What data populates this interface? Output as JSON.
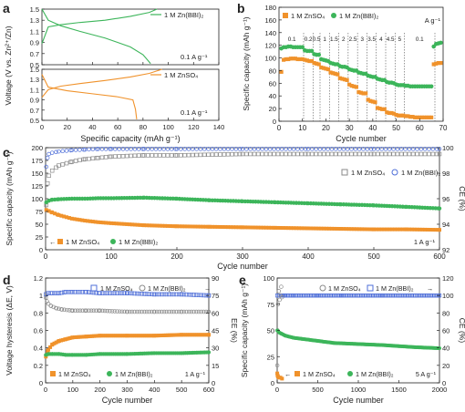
{
  "colors": {
    "orange": "#f0922b",
    "green": "#3cb55a",
    "grey": "#8a8a8a",
    "blue": "#4f6fd8",
    "axis": "#222222"
  },
  "chart_data": [
    {
      "id": "a",
      "type": "line",
      "panel_label": "a",
      "xlabel": "Specific capacity (mAh g⁻¹)",
      "ylabel": "Voltage (V vs. Zn²⁺/Zn)",
      "xlim": [
        0,
        140
      ],
      "xticks": [
        0,
        20,
        40,
        60,
        80,
        100,
        120,
        140
      ],
      "subplots": [
        {
          "legend": "1 M Zn(BBI)₂",
          "rate": "0.1 A g⁻¹",
          "ylim": [
            0.5,
            1.5
          ],
          "yticks": [
            0.5,
            0.7,
            0.9,
            1.1,
            1.3,
            1.5
          ],
          "series": [
            {
              "name": "charge",
              "x": [
                0,
                5,
                15,
                30,
                50,
                70,
                85,
                91
              ],
              "y": [
                0.88,
                1.18,
                1.22,
                1.26,
                1.3,
                1.37,
                1.44,
                1.5
              ]
            },
            {
              "name": "discharge",
              "x": [
                0,
                5,
                15,
                30,
                50,
                70,
                80,
                86
              ],
              "y": [
                1.5,
                1.3,
                1.2,
                1.1,
                0.98,
                0.82,
                0.68,
                0.52
              ]
            }
          ]
        },
        {
          "legend": "1 M ZnSO₄",
          "rate": "0.1 A g⁻¹",
          "ylim": [
            0.5,
            1.5
          ],
          "yticks": [
            0.5,
            0.7,
            0.9,
            1.1,
            1.3,
            1.5
          ],
          "series": [
            {
              "name": "charge",
              "x": [
                0,
                5,
                15,
                30,
                50,
                70,
                85,
                95
              ],
              "y": [
                0.95,
                1.1,
                1.17,
                1.22,
                1.28,
                1.35,
                1.42,
                1.5
              ]
            },
            {
              "name": "discharge",
              "x": [
                0,
                5,
                20,
                40,
                60,
                72,
                74,
                75
              ],
              "y": [
                1.4,
                1.15,
                1.08,
                1.02,
                0.96,
                0.9,
                0.72,
                0.52
              ]
            }
          ]
        }
      ]
    },
    {
      "id": "b",
      "type": "scatter",
      "panel_label": "b",
      "xlabel": "Cycle number",
      "ylabel": "Specific capacity (mAh g⁻¹)",
      "unit_label": "A g⁻¹",
      "xlim": [
        0,
        70
      ],
      "ylim": [
        0,
        180
      ],
      "xticks": [
        0,
        10,
        20,
        30,
        40,
        50,
        60,
        70
      ],
      "yticks": [
        0,
        20,
        40,
        60,
        80,
        100,
        120,
        140,
        160,
        180
      ],
      "rate_labels": [
        "0.1",
        "0.2",
        "0.5",
        "1",
        "1.5",
        "2",
        "2.5",
        "3",
        "3.5",
        "4",
        "4.5",
        "5",
        "0.1"
      ],
      "rate_boundaries": [
        10,
        14,
        17,
        21,
        25,
        29,
        33,
        37,
        41,
        45,
        49,
        53,
        66
      ],
      "series": [
        {
          "name": "1 M ZnSO₄",
          "x": [
            1,
            2,
            3,
            4,
            5,
            6,
            7,
            8,
            9,
            10,
            11,
            12,
            13,
            14,
            15,
            16,
            17,
            18,
            19,
            20,
            21,
            22,
            23,
            24,
            25,
            26,
            27,
            28,
            29,
            30,
            31,
            32,
            33,
            34,
            35,
            36,
            37,
            38,
            39,
            40,
            41,
            42,
            43,
            44,
            45,
            46,
            47,
            48,
            49,
            50,
            51,
            52,
            53,
            54,
            55,
            56,
            57,
            58,
            59,
            60,
            61,
            62,
            63,
            64,
            65,
            66,
            67,
            68,
            69
          ],
          "y": [
            78,
            97,
            98,
            98,
            99,
            99,
            99,
            98,
            98,
            98,
            97,
            96,
            95,
            95,
            92,
            91,
            90,
            85,
            84,
            83,
            82,
            77,
            76,
            75,
            74,
            68,
            67,
            66,
            65,
            58,
            56,
            55,
            54,
            46,
            45,
            44,
            44,
            34,
            32,
            31,
            30,
            21,
            20,
            19,
            19,
            14,
            13,
            13,
            12,
            10,
            9,
            9,
            9,
            8,
            8,
            7,
            7,
            6,
            6,
            6,
            6,
            6,
            6,
            6,
            6,
            90,
            91,
            92,
            92
          ]
        },
        {
          "name": "1 M Zn(BBI)₂",
          "x": [
            1,
            2,
            3,
            4,
            5,
            6,
            7,
            8,
            9,
            10,
            11,
            12,
            13,
            14,
            15,
            16,
            17,
            18,
            19,
            20,
            21,
            22,
            23,
            24,
            25,
            26,
            27,
            28,
            29,
            30,
            31,
            32,
            33,
            34,
            35,
            36,
            37,
            38,
            39,
            40,
            41,
            42,
            43,
            44,
            45,
            46,
            47,
            48,
            49,
            50,
            51,
            52,
            53,
            54,
            55,
            56,
            57,
            58,
            59,
            60,
            61,
            62,
            63,
            64,
            65,
            66,
            67,
            68,
            69
          ],
          "y": [
            115,
            117,
            117,
            118,
            118,
            117,
            117,
            117,
            117,
            117,
            112,
            111,
            111,
            111,
            106,
            105,
            105,
            98,
            97,
            96,
            95,
            92,
            91,
            90,
            90,
            87,
            86,
            86,
            85,
            82,
            81,
            80,
            80,
            77,
            76,
            75,
            75,
            72,
            71,
            70,
            70,
            67,
            66,
            65,
            65,
            62,
            61,
            61,
            60,
            58,
            57,
            57,
            57,
            56,
            56,
            55,
            55,
            55,
            55,
            55,
            55,
            55,
            55,
            55,
            55,
            118,
            122,
            123,
            124
          ]
        }
      ]
    },
    {
      "id": "c",
      "type": "scatter",
      "panel_label": "c",
      "xlabel": "Cycle number",
      "ylabel": "Specific capacity (mAh g⁻¹)",
      "y2label": "CE (%)",
      "rate": "1 A g⁻¹",
      "xlim": [
        0,
        600
      ],
      "ylim": [
        0,
        200
      ],
      "y2lim": [
        92,
        100
      ],
      "xticks": [
        0,
        100,
        200,
        300,
        400,
        500,
        600
      ],
      "yticks": [
        0,
        25,
        50,
        75,
        100,
        125,
        150,
        175,
        200
      ],
      "y2ticks": [
        92,
        94,
        96,
        98,
        100
      ],
      "series": [
        {
          "name": "1 M ZnSO₄",
          "metric": "capacity",
          "x": [
            1,
            5,
            10,
            20,
            40,
            60,
            80,
            100,
            150,
            200,
            250,
            300,
            350,
            400,
            450,
            500,
            550,
            600
          ],
          "y": [
            78,
            76,
            73,
            68,
            61,
            57,
            54,
            52,
            48,
            46,
            45,
            44,
            43,
            42,
            41,
            40,
            40,
            39
          ]
        },
        {
          "name": "1 M Zn(BBI)₂",
          "metric": "capacity",
          "x": [
            1,
            5,
            10,
            20,
            40,
            60,
            80,
            100,
            150,
            200,
            250,
            300,
            350,
            400,
            450,
            500,
            550,
            600
          ],
          "y": [
            93,
            96,
            98,
            99,
            100,
            100,
            101,
            101,
            102,
            100,
            97,
            95,
            93,
            91,
            89,
            87,
            84,
            81
          ]
        },
        {
          "name": "1 M ZnSO₄",
          "metric": "CE",
          "x": [
            1,
            3,
            5,
            10,
            20,
            40,
            60,
            80,
            100,
            150,
            200,
            300,
            400,
            500,
            600
          ],
          "y": [
            95.5,
            97.2,
            97.8,
            98.2,
            98.6,
            98.9,
            99.1,
            99.2,
            99.3,
            99.4,
            99.4,
            99.5,
            99.5,
            99.5,
            99.5
          ]
        },
        {
          "name": "1 M Zn(BBI)₂",
          "metric": "CE",
          "x": [
            1,
            3,
            5,
            10,
            20,
            40,
            60,
            80,
            100,
            150,
            200,
            300,
            400,
            500,
            600
          ],
          "y": [
            98.5,
            99.2,
            99.5,
            99.6,
            99.7,
            99.8,
            99.85,
            99.9,
            99.9,
            99.9,
            99.9,
            99.9,
            99.9,
            99.9,
            99.9
          ]
        }
      ]
    },
    {
      "id": "d",
      "type": "scatter",
      "panel_label": "d",
      "xlabel": "Cycle number",
      "ylabel": "Voltage hysteresis (ΔE, V)",
      "y2label": "EE (%)",
      "rate": "1 A g⁻¹",
      "xlim": [
        0,
        600
      ],
      "ylim": [
        0,
        1.2
      ],
      "y2lim": [
        0,
        90
      ],
      "xticks": [
        0,
        100,
        200,
        300,
        400,
        500,
        600
      ],
      "yticks": [
        0,
        0.2,
        0.4,
        0.6,
        0.8,
        1.0,
        1.2
      ],
      "y2ticks": [
        0,
        15,
        30,
        45,
        60,
        75,
        90
      ],
      "series": [
        {
          "name": "1 M ZnSO₄",
          "metric": "hysteresis",
          "x": [
            1,
            10,
            25,
            50,
            75,
            100,
            150,
            200,
            300,
            400,
            500,
            600
          ],
          "y": [
            0.3,
            0.38,
            0.44,
            0.48,
            0.5,
            0.52,
            0.53,
            0.54,
            0.54,
            0.54,
            0.55,
            0.55
          ]
        },
        {
          "name": "1 M Zn(BBI)₂",
          "metric": "hysteresis",
          "x": [
            1,
            10,
            25,
            50,
            75,
            100,
            150,
            200,
            300,
            400,
            500,
            600
          ],
          "y": [
            0.32,
            0.33,
            0.33,
            0.33,
            0.32,
            0.32,
            0.32,
            0.33,
            0.33,
            0.34,
            0.34,
            0.35
          ]
        },
        {
          "name": "1 M ZnSO₄",
          "metric": "EE",
          "x": [
            1,
            5,
            10,
            20,
            40,
            60,
            100,
            150,
            200,
            300,
            400,
            500,
            600
          ],
          "y": [
            73,
            70,
            68,
            66,
            64,
            63,
            62,
            62,
            62,
            61,
            61,
            61,
            61
          ]
        },
        {
          "name": "1 M Zn(BBI)₂",
          "metric": "EE",
          "x": [
            1,
            10,
            25,
            50,
            75,
            100,
            150,
            200,
            300,
            400,
            500,
            600
          ],
          "y": [
            76,
            77,
            77,
            77,
            78,
            78,
            78,
            77,
            77,
            76,
            76,
            75
          ]
        }
      ]
    },
    {
      "id": "e",
      "type": "scatter",
      "panel_label": "e",
      "xlabel": "Cycle number",
      "ylabel": "Specific capacity (mAh g⁻¹)",
      "y2label": "CE (%)",
      "rate": "5 A g⁻¹",
      "xlim": [
        0,
        2000
      ],
      "ylim": [
        0,
        100
      ],
      "y2lim": [
        0,
        120
      ],
      "xticks": [
        0,
        500,
        1000,
        1500,
        2000
      ],
      "yticks": [
        0,
        25,
        50,
        75,
        100
      ],
      "y2ticks": [
        0,
        20,
        40,
        60,
        80,
        100,
        120
      ],
      "series": [
        {
          "name": "1 M ZnSO₄",
          "metric": "capacity",
          "x": [
            1,
            5,
            10,
            20,
            40,
            60
          ],
          "y": [
            9,
            7,
            6,
            5,
            5,
            4
          ]
        },
        {
          "name": "1 M Zn(BBI)₂",
          "metric": "capacity",
          "x": [
            1,
            25,
            50,
            100,
            200,
            300,
            500,
            700,
            1000,
            1300,
            1500,
            1700,
            2000
          ],
          "y": [
            50,
            48,
            47,
            45,
            43,
            42,
            40,
            38,
            37,
            36,
            35,
            34,
            33
          ]
        },
        {
          "name": "1 M ZnSO₄",
          "metric": "CE",
          "x": [
            1,
            5,
            10,
            20,
            30,
            40,
            50,
            60
          ],
          "y": [
            20,
            60,
            90,
            105,
            95,
            100,
            110,
            98
          ]
        },
        {
          "name": "1 M Zn(BBI)₂",
          "metric": "CE",
          "x": [
            1,
            25,
            50,
            100,
            200,
            500,
            800,
            1000,
            1300,
            1500,
            1700,
            2000
          ],
          "y": [
            100,
            100,
            100,
            100,
            100,
            100,
            100,
            100,
            100,
            100,
            100,
            100
          ]
        }
      ]
    }
  ]
}
